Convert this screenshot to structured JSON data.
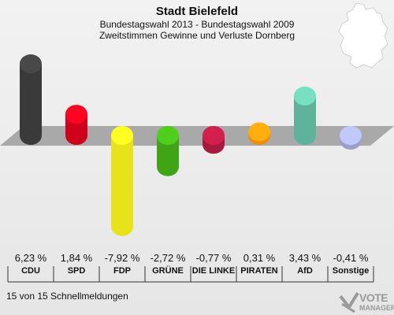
{
  "chart_data": {
    "type": "bar",
    "title": "Stadt Bielefeld",
    "subtitle": "Bundestagswahl 2013 - Bundestagswahl 2009",
    "subtitle2": "Zweitstimmen Gewinne und Verluste Dornberg",
    "categories": [
      "CDU",
      "SPD",
      "FDP",
      "GRÜNE",
      "DIE LINKE",
      "PIRATEN",
      "AfD",
      "Sonstige"
    ],
    "values": [
      6.23,
      1.84,
      -7.92,
      -2.72,
      -0.77,
      0.31,
      3.43,
      -0.41
    ],
    "value_labels": [
      "6,23 %",
      "1,84 %",
      "-7,92 %",
      "-2,72 %",
      "-0,77 %",
      "0,31 %",
      "3,43 %",
      "-0,41 %"
    ],
    "colors": [
      "#3a3a3a",
      "#d0021b",
      "#e8e21a",
      "#3fa516",
      "#a8193e",
      "#f08c0a",
      "#5fb39a",
      "#9aa0c8"
    ],
    "ylim": [
      -8,
      7
    ],
    "grid": false
  },
  "footer": "15 von 15 Schnellmeldungen",
  "logo": {
    "wordmark": "VOTE",
    "sub": "MANAGER"
  }
}
